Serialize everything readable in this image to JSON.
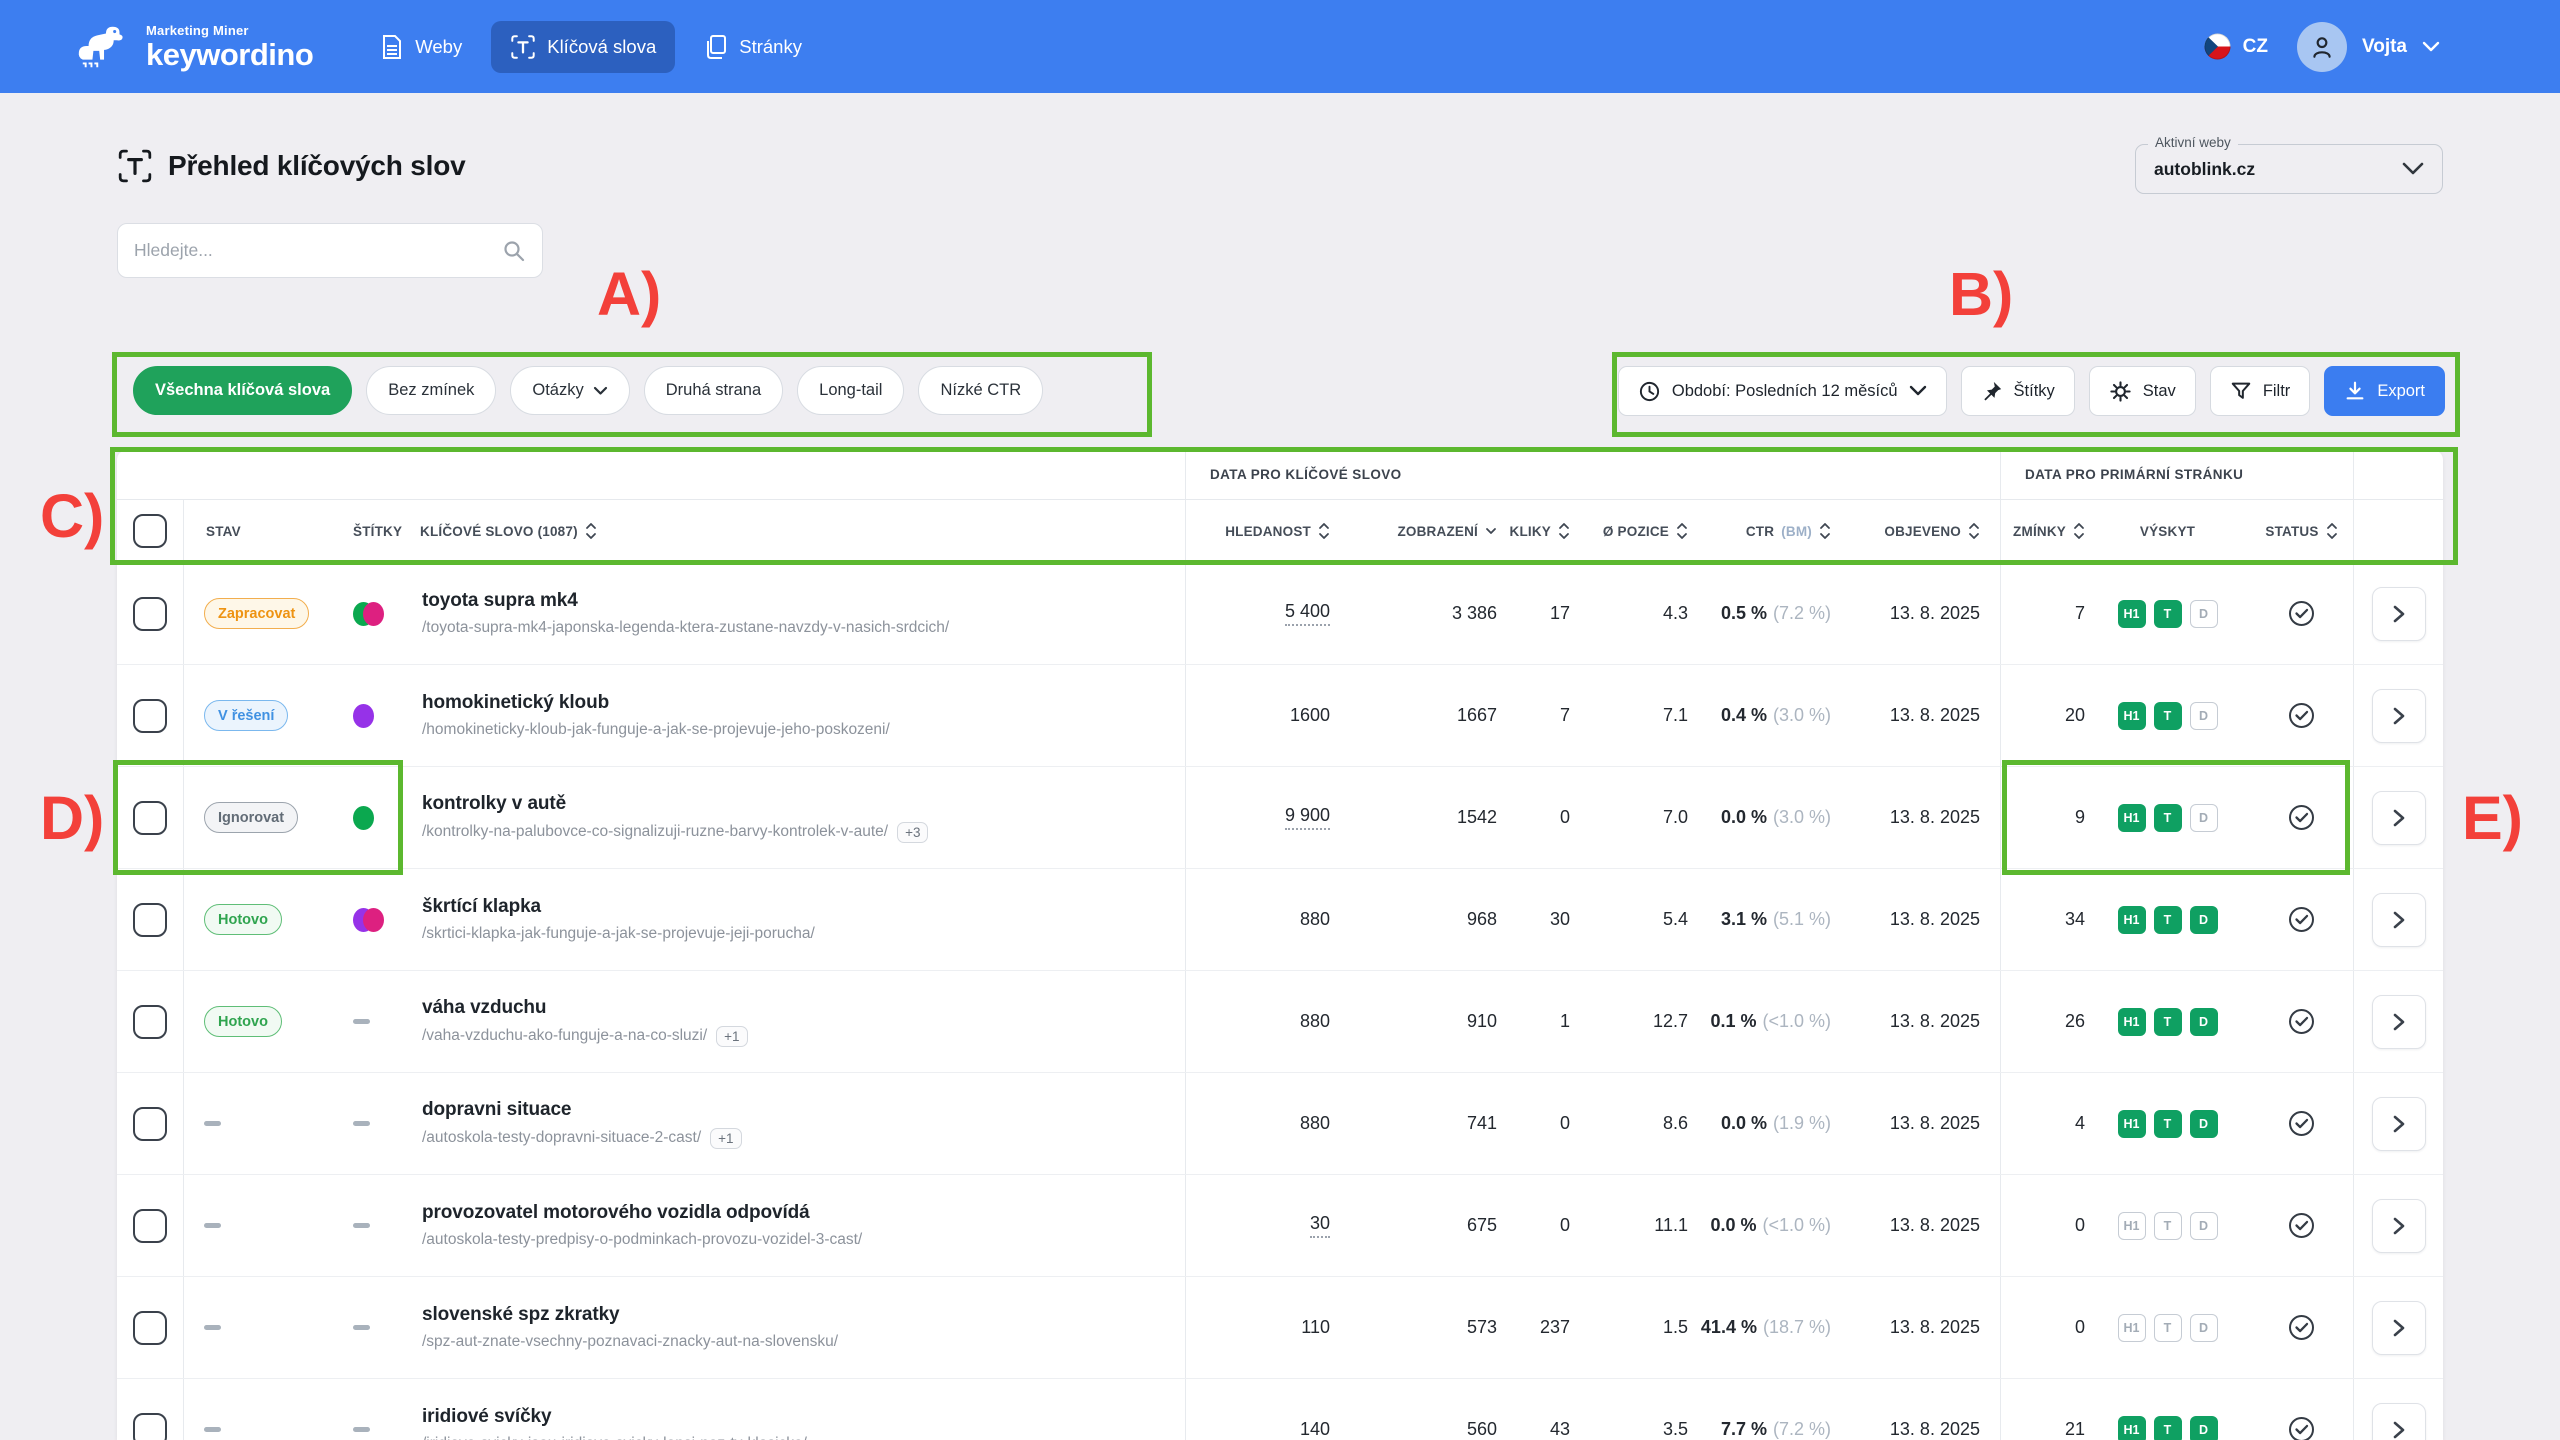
{
  "nav": {
    "brand_small": "Marketing Miner",
    "brand": "keywordino",
    "items": [
      {
        "label": "Weby"
      },
      {
        "label": "Klíčová slova",
        "active": true
      },
      {
        "label": "Stránky"
      }
    ],
    "locale": "CZ",
    "user": "Vojta"
  },
  "page": {
    "title": "Přehled klíčových slov",
    "search_placeholder": "Hledejte...",
    "active_web_label": "Aktivní weby",
    "active_web_value": "autoblink.cz"
  },
  "filters": {
    "chips": [
      {
        "label": "Všechna klíčová slova",
        "selected": true
      },
      {
        "label": "Bez zmínek"
      },
      {
        "label": "Otázky",
        "dropdown": true
      },
      {
        "label": "Druhá strana"
      },
      {
        "label": "Long-tail"
      },
      {
        "label": "Nízké CTR"
      }
    ]
  },
  "toolbar": {
    "period": "Období: Posledních 12 měsíců",
    "tags": "Štítky",
    "state": "Stav",
    "filter": "Filtr",
    "export": "Export"
  },
  "table": {
    "group_keyword": "DATA PRO KLÍČOVÉ SLOVO",
    "group_page": "DATA PRO PRIMÁRNÍ STRÁNKU",
    "columns": {
      "stav": "STAV",
      "stitky": "ŠTÍTKY",
      "keyword": "KLÍČOVÉ SLOVO (1087)",
      "hledanost": "HLEDANOST",
      "zobrazeni": "ZOBRAZENÍ",
      "kliky": "KLIKY",
      "pozice": "Ø POZICE",
      "ctr": "CTR",
      "ctr_sub": "(BM)",
      "objeveno": "OBJEVENO",
      "zminky": "ZMÍNKY",
      "vyskyt": "VÝSKYT",
      "status": "STATUS"
    },
    "badge_letters": [
      "H1",
      "T",
      "D"
    ],
    "rows": [
      {
        "stav": {
          "label": "Zapracovat",
          "tone": "orange"
        },
        "tags": [
          "green",
          "magenta"
        ],
        "keyword": "toyota supra mk4",
        "url": "/toyota-supra-mk4-japonska-legenda-ktera-zustane-navzdy-v-nasich-srdcich/",
        "url_more": null,
        "hledanost": "5 400",
        "hledanost_tip": true,
        "zobrazeni": "3 386",
        "kliky": "17",
        "pozice": "4.3",
        "ctr": "0.5 %",
        "ctr_sub": "(7.2 %)",
        "objeveno": "13. 8. 2025",
        "zminky": "7",
        "vyskyt": [
          true,
          true,
          false
        ]
      },
      {
        "stav": {
          "label": "V řešení",
          "tone": "blue"
        },
        "tags": [
          "purple"
        ],
        "keyword": "homokinetický kloub",
        "url": "/homokineticky-kloub-jak-funguje-a-jak-se-projevuje-jeho-poskozeni/",
        "url_more": null,
        "hledanost": "1600",
        "hledanost_tip": false,
        "zobrazeni": "1667",
        "kliky": "7",
        "pozice": "7.1",
        "ctr": "0.4 %",
        "ctr_sub": "(3.0 %)",
        "objeveno": "13. 8. 2025",
        "zminky": "20",
        "vyskyt": [
          true,
          true,
          false
        ]
      },
      {
        "stav": {
          "label": "Ignorovat",
          "tone": "gray"
        },
        "tags": [
          "green"
        ],
        "keyword": "kontrolky v autě",
        "url": "/kontrolky-na-palubovce-co-signalizuji-ruzne-barvy-kontrolek-v-aute/",
        "url_more": "+3",
        "hledanost": "9 900",
        "hledanost_tip": true,
        "zobrazeni": "1542",
        "kliky": "0",
        "pozice": "7.0",
        "ctr": "0.0 %",
        "ctr_sub": "(3.0 %)",
        "objeveno": "13. 8. 2025",
        "zminky": "9",
        "vyskyt": [
          true,
          true,
          false
        ]
      },
      {
        "stav": {
          "label": "Hotovo",
          "tone": "green"
        },
        "tags": [
          "purple",
          "magenta"
        ],
        "keyword": "škrtící klapka",
        "url": "/skrtici-klapka-jak-funguje-a-jak-se-projevuje-jeji-porucha/",
        "url_more": null,
        "hledanost": "880",
        "hledanost_tip": false,
        "zobrazeni": "968",
        "kliky": "30",
        "pozice": "5.4",
        "ctr": "3.1 %",
        "ctr_sub": "(5.1 %)",
        "objeveno": "13. 8. 2025",
        "zminky": "34",
        "vyskyt": [
          true,
          true,
          true
        ]
      },
      {
        "stav": {
          "label": "Hotovo",
          "tone": "green"
        },
        "tags": null,
        "keyword": "váha vzduchu",
        "url": "/vaha-vzduchu-ako-funguje-a-na-co-sluzi/",
        "url_more": "+1",
        "hledanost": "880",
        "hledanost_tip": false,
        "zobrazeni": "910",
        "kliky": "1",
        "pozice": "12.7",
        "ctr": "0.1 %",
        "ctr_sub": "(<1.0 %)",
        "objeveno": "13. 8. 2025",
        "zminky": "26",
        "vyskyt": [
          true,
          true,
          true
        ]
      },
      {
        "stav": null,
        "tags": null,
        "keyword": "dopravni situace",
        "url": "/autoskola-testy-dopravni-situace-2-cast/",
        "url_more": "+1",
        "hledanost": "880",
        "hledanost_tip": false,
        "zobrazeni": "741",
        "kliky": "0",
        "pozice": "8.6",
        "ctr": "0.0 %",
        "ctr_sub": "(1.9 %)",
        "objeveno": "13. 8. 2025",
        "zminky": "4",
        "vyskyt": [
          true,
          true,
          true
        ]
      },
      {
        "stav": null,
        "tags": null,
        "keyword": "provozovatel motorového vozidla odpovídá",
        "url": "/autoskola-testy-predpisy-o-podminkach-provozu-vozidel-3-cast/",
        "url_more": null,
        "hledanost": "30",
        "hledanost_tip": true,
        "zobrazeni": "675",
        "kliky": "0",
        "pozice": "11.1",
        "ctr": "0.0 %",
        "ctr_sub": "(<1.0 %)",
        "objeveno": "13. 8. 2025",
        "zminky": "0",
        "vyskyt": [
          false,
          false,
          false
        ]
      },
      {
        "stav": null,
        "tags": null,
        "keyword": "slovenské spz zkratky",
        "url": "/spz-aut-znate-vsechny-poznavaci-znacky-aut-na-slovensku/",
        "url_more": null,
        "hledanost": "110",
        "hledanost_tip": false,
        "zobrazeni": "573",
        "kliky": "237",
        "pozice": "1.5",
        "ctr": "41.4 %",
        "ctr_sub": "(18.7 %)",
        "objeveno": "13. 8. 2025",
        "zminky": "0",
        "vyskyt": [
          false,
          false,
          false
        ]
      },
      {
        "stav": null,
        "tags": null,
        "keyword": "iridiové svíčky",
        "url": "/iridiove-svicky-jsou-iridiove-svicky-lepsi-nez-ty-klasicke/",
        "url_more": null,
        "hledanost": "140",
        "hledanost_tip": false,
        "zobrazeni": "560",
        "kliky": "43",
        "pozice": "3.5",
        "ctr": "7.7 %",
        "ctr_sub": "(7.2 %)",
        "objeveno": "13. 8. 2025",
        "zminky": "21",
        "vyskyt": [
          true,
          true,
          true
        ]
      }
    ]
  },
  "annotations": {
    "a": "A)",
    "b": "B)",
    "c": "C)",
    "d": "D)",
    "e": "E)"
  },
  "colors": {
    "nav_blue": "#3D7EF0",
    "page_bg": "#EFEEF2",
    "chip_green": "#1FA25B",
    "annotation_green": "#5CB82F",
    "annotation_red": "#F3403A",
    "export_blue": "#3B7DF0",
    "presence_green": "#0FA062"
  }
}
